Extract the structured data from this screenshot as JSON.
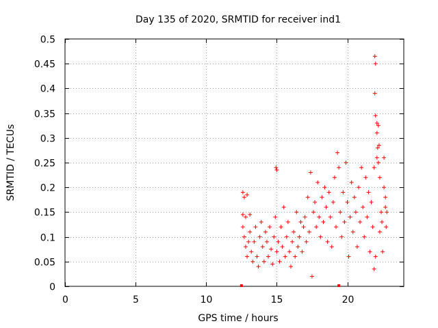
{
  "chart_data": {
    "type": "scatter",
    "title": "Day 135 of 2020, SRMTID for receiver ind1",
    "xlabel": "GPS time / hours",
    "ylabel": "SRMTID / TECUs",
    "xlim": [
      0,
      24
    ],
    "ylim": [
      0,
      0.5
    ],
    "x_ticks": [
      0,
      5,
      10,
      15,
      20
    ],
    "y_ticks": [
      0,
      0.05,
      0.1,
      0.15,
      0.2,
      0.25,
      0.3,
      0.35,
      0.4,
      0.45,
      0.5
    ],
    "x_tick_labels": [
      "0",
      "5",
      "10",
      "15",
      "20"
    ],
    "y_tick_labels": [
      "0",
      "0.05",
      "0.1",
      "0.15",
      "0.2",
      "0.25",
      "0.3",
      "0.35",
      "0.4",
      "0.45",
      "0.5"
    ],
    "grid": true,
    "marker": "+",
    "color": "#ff0000",
    "series": [
      {
        "name": "ind1",
        "points": [
          [
            12.6,
            0.19
          ],
          [
            12.7,
            0.18
          ],
          [
            12.9,
            0.185
          ],
          [
            12.6,
            0.145
          ],
          [
            12.8,
            0.14
          ],
          [
            13.1,
            0.145
          ],
          [
            12.6,
            0.12
          ],
          [
            12.7,
            0.1
          ],
          [
            12.8,
            0.08
          ],
          [
            12.9,
            0.06
          ],
          [
            13.0,
            0.09
          ],
          [
            13.1,
            0.11
          ],
          [
            13.2,
            0.07
          ],
          [
            13.3,
            0.05
          ],
          [
            13.4,
            0.09
          ],
          [
            13.5,
            0.12
          ],
          [
            13.6,
            0.06
          ],
          [
            13.7,
            0.04
          ],
          [
            13.8,
            0.1
          ],
          [
            13.9,
            0.13
          ],
          [
            14.0,
            0.08
          ],
          [
            14.1,
            0.05
          ],
          [
            14.2,
            0.11
          ],
          [
            14.3,
            0.09
          ],
          [
            14.4,
            0.06
          ],
          [
            14.5,
            0.12
          ],
          [
            14.6,
            0.075
          ],
          [
            14.7,
            0.045
          ],
          [
            14.8,
            0.1
          ],
          [
            14.9,
            0.14
          ],
          [
            14.95,
            0.24
          ],
          [
            15.0,
            0.235
          ],
          [
            15.0,
            0.07
          ],
          [
            15.1,
            0.09
          ],
          [
            15.2,
            0.05
          ],
          [
            15.3,
            0.12
          ],
          [
            15.4,
            0.08
          ],
          [
            15.5,
            0.16
          ],
          [
            15.6,
            0.06
          ],
          [
            15.7,
            0.1
          ],
          [
            15.8,
            0.13
          ],
          [
            15.9,
            0.07
          ],
          [
            16.0,
            0.04
          ],
          [
            16.1,
            0.09
          ],
          [
            16.2,
            0.11
          ],
          [
            16.3,
            0.06
          ],
          [
            16.4,
            0.15
          ],
          [
            16.5,
            0.08
          ],
          [
            16.6,
            0.1
          ],
          [
            16.7,
            0.13
          ],
          [
            16.8,
            0.07
          ],
          [
            16.9,
            0.12
          ],
          [
            17.0,
            0.14
          ],
          [
            17.1,
            0.09
          ],
          [
            17.2,
            0.18
          ],
          [
            17.3,
            0.11
          ],
          [
            17.4,
            0.23
          ],
          [
            17.5,
            0.02
          ],
          [
            17.6,
            0.15
          ],
          [
            17.7,
            0.17
          ],
          [
            17.8,
            0.12
          ],
          [
            17.9,
            0.21
          ],
          [
            18.0,
            0.14
          ],
          [
            18.1,
            0.1
          ],
          [
            18.2,
            0.18
          ],
          [
            18.3,
            0.13
          ],
          [
            18.4,
            0.2
          ],
          [
            18.5,
            0.16
          ],
          [
            18.6,
            0.09
          ],
          [
            18.7,
            0.19
          ],
          [
            18.8,
            0.14
          ],
          [
            18.9,
            0.08
          ],
          [
            19.0,
            0.17
          ],
          [
            19.1,
            0.22
          ],
          [
            19.2,
            0.12
          ],
          [
            19.3,
            0.27
          ],
          [
            19.4,
            0.24
          ],
          [
            19.5,
            0.15
          ],
          [
            19.6,
            0.1
          ],
          [
            19.7,
            0.19
          ],
          [
            19.8,
            0.13
          ],
          [
            19.9,
            0.25
          ],
          [
            20.0,
            0.17
          ],
          [
            20.1,
            0.06
          ],
          [
            20.2,
            0.14
          ],
          [
            20.3,
            0.21
          ],
          [
            20.4,
            0.11
          ],
          [
            20.5,
            0.18
          ],
          [
            20.6,
            0.15
          ],
          [
            20.7,
            0.08
          ],
          [
            20.8,
            0.2
          ],
          [
            20.9,
            0.13
          ],
          [
            21.0,
            0.24
          ],
          [
            21.1,
            0.16
          ],
          [
            21.2,
            0.1
          ],
          [
            21.3,
            0.22
          ],
          [
            21.4,
            0.14
          ],
          [
            21.5,
            0.19
          ],
          [
            21.6,
            0.07
          ],
          [
            21.7,
            0.17
          ],
          [
            21.8,
            0.12
          ],
          [
            21.9,
            0.24
          ],
          [
            21.95,
            0.465
          ],
          [
            22.0,
            0.45
          ],
          [
            21.95,
            0.39
          ],
          [
            22.0,
            0.345
          ],
          [
            22.1,
            0.33
          ],
          [
            22.1,
            0.31
          ],
          [
            22.2,
            0.325
          ],
          [
            22.15,
            0.28
          ],
          [
            22.25,
            0.285
          ],
          [
            22.1,
            0.26
          ],
          [
            22.2,
            0.25
          ],
          [
            22.3,
            0.22
          ],
          [
            22.4,
            0.15
          ],
          [
            22.5,
            0.07
          ],
          [
            22.6,
            0.26
          ],
          [
            22.7,
            0.18
          ],
          [
            22.8,
            0.15
          ],
          [
            22.3,
            0.11
          ],
          [
            22.45,
            0.13
          ],
          [
            22.6,
            0.2
          ],
          [
            22.7,
            0.16
          ],
          [
            22.75,
            0.12
          ],
          [
            21.9,
            0.035
          ],
          [
            22.0,
            0.06
          ]
        ]
      }
    ],
    "markers_on_axis": [
      12.5,
      19.4
    ]
  }
}
